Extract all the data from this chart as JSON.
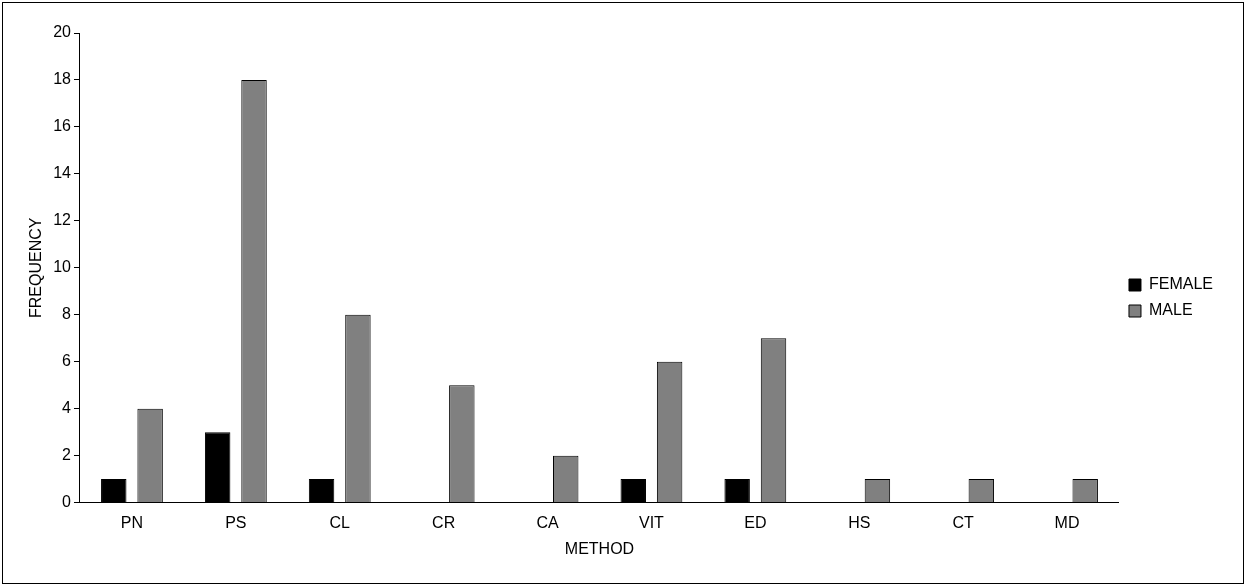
{
  "chart_data": {
    "type": "bar",
    "xlabel": "METHOD",
    "ylabel": "FREQUENCY",
    "categories": [
      "PN",
      "PS",
      "CL",
      "CR",
      "CA",
      "VIT",
      "ED",
      "HS",
      "CT",
      "MD"
    ],
    "series": [
      {
        "name": "FEMALE",
        "color": "#000000",
        "values": [
          1,
          3,
          1,
          0,
          0,
          1,
          1,
          0,
          0,
          0
        ]
      },
      {
        "name": "MALE",
        "color": "#808080",
        "values": [
          4,
          18,
          8,
          5,
          2,
          6,
          7,
          1,
          1,
          1
        ]
      }
    ],
    "ylim": [
      0,
      20
    ],
    "yticks": [
      0,
      2,
      4,
      6,
      8,
      10,
      12,
      14,
      16,
      18,
      20
    ],
    "grid": false,
    "legend": "right"
  }
}
